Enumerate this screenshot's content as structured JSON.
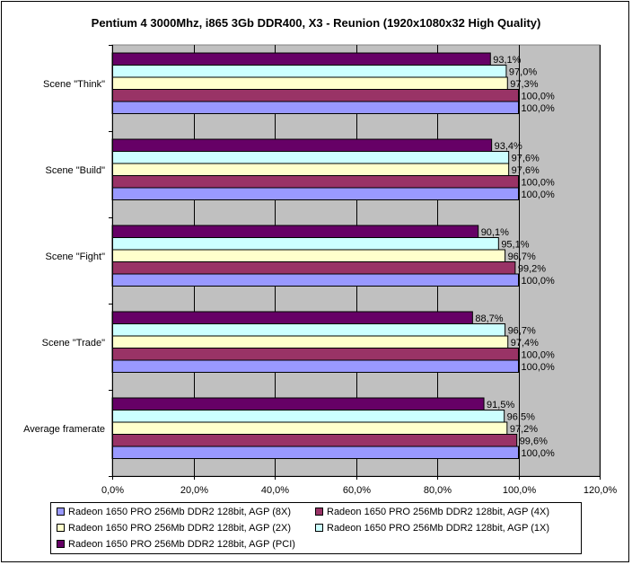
{
  "chart_data": {
    "type": "bar",
    "orientation": "horizontal",
    "title": "Pentium 4 3000Mhz, i865 3Gb DDR400, X3 - Reunion (1920x1080x32 High Quality)",
    "categories": [
      "Scene \"Think\"",
      "Scene \"Build\"",
      "Scene \"Fight\"",
      "Scene \"Trade\"",
      "Average framerate"
    ],
    "series": [
      {
        "name": "Radeon 1650 PRO 256Mb DDR2 128bit, AGP (8X)",
        "color": "#9999ff",
        "values": [
          100.0,
          100.0,
          100.0,
          100.0,
          100.0
        ],
        "labels": [
          "100,0%",
          "100,0%",
          "100,0%",
          "100,0%",
          "100,0%"
        ]
      },
      {
        "name": "Radeon 1650 PRO 256Mb DDR2 128bit, AGP (4X)",
        "color": "#993366",
        "values": [
          100.0,
          100.0,
          99.2,
          100.0,
          99.6
        ],
        "labels": [
          "100,0%",
          "100,0%",
          "99,2%",
          "100,0%",
          "99,6%"
        ]
      },
      {
        "name": "Radeon 1650 PRO 256Mb DDR2 128bit, AGP (2X)",
        "color": "#ffffcc",
        "values": [
          97.3,
          97.6,
          96.7,
          97.4,
          97.2
        ],
        "labels": [
          "97,3%",
          "97,6%",
          "96,7%",
          "97,4%",
          "97,2%"
        ]
      },
      {
        "name": "Radeon 1650 PRO 256Mb DDR2 128bit, AGP (1X)",
        "color": "#ccffff",
        "values": [
          97.0,
          97.6,
          95.1,
          96.7,
          96.5
        ],
        "labels": [
          "97,0%",
          "97,6%",
          "95,1%",
          "96,7%",
          "96,5%"
        ]
      },
      {
        "name": "Radeon 1650 PRO 256Mb DDR2 128bit, AGP (PCI)",
        "color": "#660066",
        "values": [
          93.1,
          93.4,
          90.1,
          88.7,
          91.5
        ],
        "labels": [
          "93,1%",
          "93,4%",
          "90,1%",
          "88,7%",
          "91,5%"
        ]
      }
    ],
    "xlim": [
      0,
      120
    ],
    "xticks": [
      0,
      20,
      40,
      60,
      80,
      100,
      120
    ],
    "xtick_labels": [
      "0,0%",
      "20,0%",
      "40,0%",
      "60,0%",
      "80,0%",
      "100,0%",
      "120,0%"
    ],
    "plot_background": "#c0c0c0",
    "grid": true,
    "legend_position": "bottom"
  }
}
